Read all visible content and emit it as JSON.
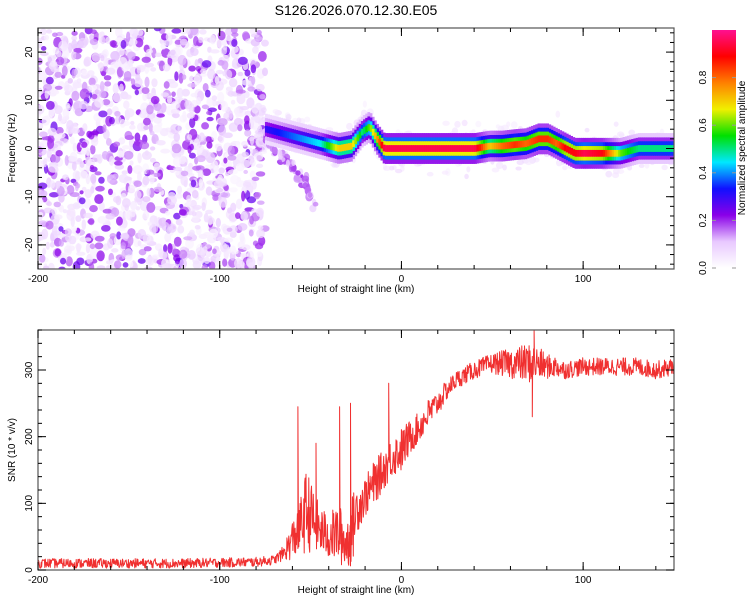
{
  "window_title": "S126.2026.070.12.30.E05",
  "chart_data": [
    {
      "type": "heatmap",
      "name": "spectrogram",
      "title": "S126.2026.070.12.30.E05",
      "xlabel": "Height of straight line (km)",
      "ylabel": "Frequency (Hz)",
      "xlim": [
        -200,
        150
      ],
      "ylim": [
        -25,
        25
      ],
      "xticks": [
        -200,
        -100,
        0,
        100
      ],
      "yticks": [
        -20,
        -10,
        0,
        10,
        20
      ],
      "grid": false,
      "colorbar": {
        "label": "Normalized spectral amplitude",
        "range": [
          0,
          1
        ],
        "ticks": [
          "0.0",
          "0.2",
          "0.4",
          "0.6",
          "0.8"
        ],
        "colors": [
          "#ffffff",
          "#e8c8ff",
          "#8a00e8",
          "#1010ff",
          "#00e8ff",
          "#00e000",
          "#f0f000",
          "#ff8000",
          "#ff0000",
          "#ff1090"
        ]
      },
      "noise_region_x": [
        -200,
        -75
      ],
      "signal_ridge": {
        "description": "Frequency (Hz) of the dominant spectral peak versus height",
        "x": [
          -75,
          -65,
          -55,
          -45,
          -35,
          -28,
          -22,
          -18,
          -14,
          -10,
          0,
          20,
          40,
          48,
          55,
          62,
          68,
          75,
          80,
          85,
          90,
          95,
          100,
          110,
          120,
          130,
          140,
          150
        ],
        "freq": [
          4,
          3,
          2,
          1,
          0,
          0.5,
          3.5,
          4.5,
          2,
          0,
          0,
          0,
          0,
          0.5,
          0.5,
          0.8,
          1,
          2,
          2,
          1,
          0,
          -1,
          -1,
          -1,
          -1,
          0,
          0,
          0
        ],
        "amplitude": [
          0.3,
          0.35,
          0.4,
          0.45,
          0.7,
          0.7,
          0.5,
          0.6,
          0.75,
          0.95,
          0.95,
          0.95,
          0.95,
          0.7,
          0.8,
          0.85,
          0.8,
          0.85,
          0.85,
          0.8,
          0.9,
          0.9,
          0.95,
          0.9,
          0.6,
          0.5,
          0.5,
          0.5
        ]
      },
      "secondary_trail": {
        "description": "Faint descending branch",
        "x": [
          -75,
          -65,
          -58,
          -52,
          -47
        ],
        "freq": [
          2,
          -2,
          -5,
          -8,
          -12
        ]
      }
    },
    {
      "type": "line",
      "name": "snr",
      "xlabel": "Height of straight line (km)",
      "ylabel": "SNR (10 * v/v)",
      "xlim": [
        -200,
        150
      ],
      "ylim": [
        0,
        360
      ],
      "xticks": [
        -200,
        -100,
        0,
        100
      ],
      "yticks": [
        0,
        100,
        200,
        300
      ],
      "grid": false,
      "series": [
        {
          "name": "SNR",
          "color": "#f03030",
          "x": [
            -200,
            -180,
            -160,
            -140,
            -120,
            -100,
            -80,
            -70,
            -65,
            -60,
            -55,
            -52,
            -50,
            -45,
            -40,
            -35,
            -30,
            -27,
            -25,
            -20,
            -15,
            -10,
            -5,
            0,
            5,
            10,
            15,
            20,
            25,
            30,
            40,
            50,
            60,
            70,
            75,
            80,
            85,
            90,
            100,
            110,
            120,
            130,
            140,
            150
          ],
          "mean": [
            10,
            10,
            10,
            10,
            10,
            11,
            12,
            15,
            25,
            45,
            70,
            90,
            80,
            60,
            50,
            55,
            40,
            60,
            90,
            110,
            130,
            150,
            170,
            180,
            200,
            215,
            235,
            250,
            270,
            285,
            300,
            310,
            310,
            310,
            310,
            305,
            305,
            300,
            305,
            305,
            305,
            305,
            300,
            305
          ],
          "noise": [
            8,
            8,
            8,
            8,
            8,
            8,
            8,
            8,
            15,
            40,
            60,
            90,
            70,
            50,
            45,
            60,
            55,
            70,
            50,
            40,
            45,
            40,
            40,
            45,
            35,
            30,
            30,
            25,
            20,
            18,
            18,
            20,
            30,
            40,
            35,
            25,
            22,
            18,
            18,
            18,
            18,
            18,
            18,
            18
          ],
          "peaks": [
            {
              "x": -57,
              "y": 245
            },
            {
              "x": -47,
              "y": 190
            },
            {
              "x": -34,
              "y": 245
            },
            {
              "x": -28,
              "y": 250
            },
            {
              "x": -7,
              "y": 280
            },
            {
              "x": 73,
              "y": 360
            },
            {
              "x": 72,
              "y": 230
            }
          ]
        }
      ]
    }
  ]
}
